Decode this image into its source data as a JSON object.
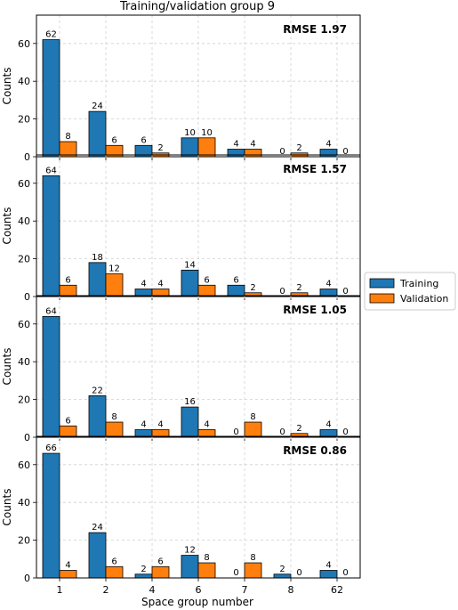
{
  "chart_data": {
    "type": "bar",
    "title": "Training/validation group 9",
    "xlabel": "Space group number",
    "ylabel": "Counts",
    "categories": [
      "1",
      "2",
      "4",
      "6",
      "7",
      "8",
      "62"
    ],
    "yticks": [
      0,
      20,
      40,
      60
    ],
    "ylim": [
      0,
      75
    ],
    "grid": true,
    "legend": {
      "placement": "right",
      "entries": [
        "Training",
        "Validation"
      ]
    },
    "colors": {
      "Training": "#1f77b4",
      "Validation": "#ff7f0e"
    },
    "panels": [
      {
        "annotation": "RMSE 1.97",
        "series": [
          {
            "name": "Training",
            "values": [
              62,
              24,
              6,
              10,
              4,
              0,
              4
            ]
          },
          {
            "name": "Validation",
            "values": [
              8,
              6,
              2,
              10,
              4,
              2,
              0
            ]
          }
        ]
      },
      {
        "annotation": "RMSE 1.57",
        "series": [
          {
            "name": "Training",
            "values": [
              64,
              18,
              4,
              14,
              6,
              0,
              4
            ]
          },
          {
            "name": "Validation",
            "values": [
              6,
              12,
              4,
              6,
              2,
              2,
              0
            ]
          }
        ]
      },
      {
        "annotation": "RMSE 1.05",
        "series": [
          {
            "name": "Training",
            "values": [
              64,
              22,
              4,
              16,
              0,
              0,
              4
            ]
          },
          {
            "name": "Validation",
            "values": [
              6,
              8,
              4,
              4,
              8,
              2,
              0
            ]
          }
        ]
      },
      {
        "annotation": "RMSE 0.86",
        "series": [
          {
            "name": "Training",
            "values": [
              66,
              24,
              2,
              12,
              0,
              2,
              4
            ]
          },
          {
            "name": "Validation",
            "values": [
              4,
              6,
              6,
              8,
              8,
              0,
              0
            ]
          }
        ]
      }
    ]
  }
}
